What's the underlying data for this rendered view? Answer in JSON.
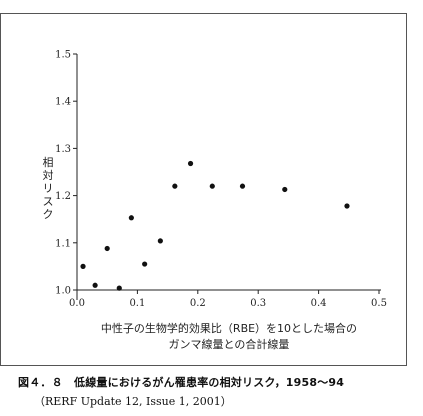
{
  "chart_data": {
    "type": "scatter",
    "xlabel_line1": "中性子の生物学的効果比（RBE）を10とした場合の",
    "xlabel_line2": "ガンマ線量との合計線量",
    "ylabel": "相対リスク",
    "xlim": [
      0,
      0.5
    ],
    "ylim": [
      1.0,
      1.5
    ],
    "xticks": [
      "0.0",
      "0.1",
      "0.2",
      "0.3",
      "0.4",
      "0.5"
    ],
    "yticks": [
      "1.0",
      "1.1",
      "1.2",
      "1.3",
      "1.4",
      "1.5"
    ],
    "grid": false,
    "points": [
      {
        "x": 0.01,
        "y": 1.05
      },
      {
        "x": 0.03,
        "y": 1.01
      },
      {
        "x": 0.05,
        "y": 1.088
      },
      {
        "x": 0.07,
        "y": 1.004
      },
      {
        "x": 0.09,
        "y": 1.153
      },
      {
        "x": 0.112,
        "y": 1.055
      },
      {
        "x": 0.138,
        "y": 1.104
      },
      {
        "x": 0.162,
        "y": 1.22
      },
      {
        "x": 0.188,
        "y": 1.268
      },
      {
        "x": 0.224,
        "y": 1.22
      },
      {
        "x": 0.274,
        "y": 1.22
      },
      {
        "x": 0.344,
        "y": 1.213
      },
      {
        "x": 0.447,
        "y": 1.178
      }
    ]
  },
  "caption": {
    "title": "図４．８　低線量におけるがん罹患率の相対リスク，1958～94",
    "source": "（RERF Update 12, Issue 1, 2001）"
  }
}
